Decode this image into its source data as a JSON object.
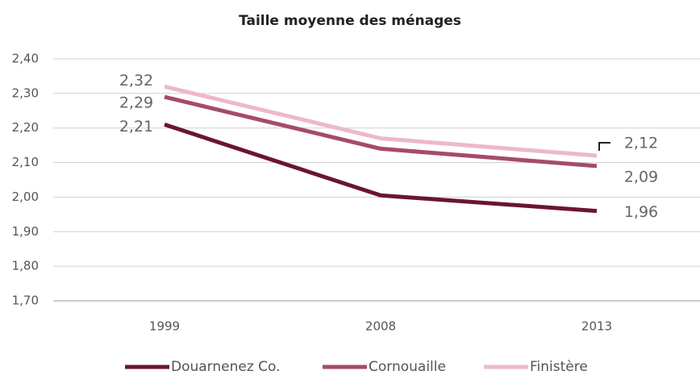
{
  "chart_data": {
    "type": "line",
    "title": "Taille moyenne des ménages",
    "categories": [
      "1999",
      "2008",
      "2013"
    ],
    "series": [
      {
        "name": "Douarnenez Co.",
        "color": "#6b1530",
        "values": [
          2.21,
          2.005,
          1.96
        ],
        "value_labels": [
          "2,21",
          null,
          "1,96"
        ]
      },
      {
        "name": "Cornouaille",
        "color": "#a54b68",
        "values": [
          2.29,
          2.14,
          2.09
        ],
        "value_labels": [
          "2,29",
          null,
          "2,09"
        ]
      },
      {
        "name": "Finistère",
        "color": "#edb9c9",
        "values": [
          2.32,
          2.17,
          2.12
        ],
        "value_labels": [
          "2,32",
          null,
          "2,12"
        ]
      }
    ],
    "ylim": [
      1.7,
      2.4
    ],
    "yticks": [
      {
        "value": 1.7,
        "label": "1,70"
      },
      {
        "value": 1.8,
        "label": "1,80"
      },
      {
        "value": 1.9,
        "label": "1,90"
      },
      {
        "value": 2.0,
        "label": "2,00"
      },
      {
        "value": 2.1,
        "label": "2,10"
      },
      {
        "value": 2.2,
        "label": "2,20"
      },
      {
        "value": 2.3,
        "label": "2,30"
      },
      {
        "value": 2.4,
        "label": "2,40"
      }
    ],
    "grid": true,
    "legend": "bottom"
  }
}
